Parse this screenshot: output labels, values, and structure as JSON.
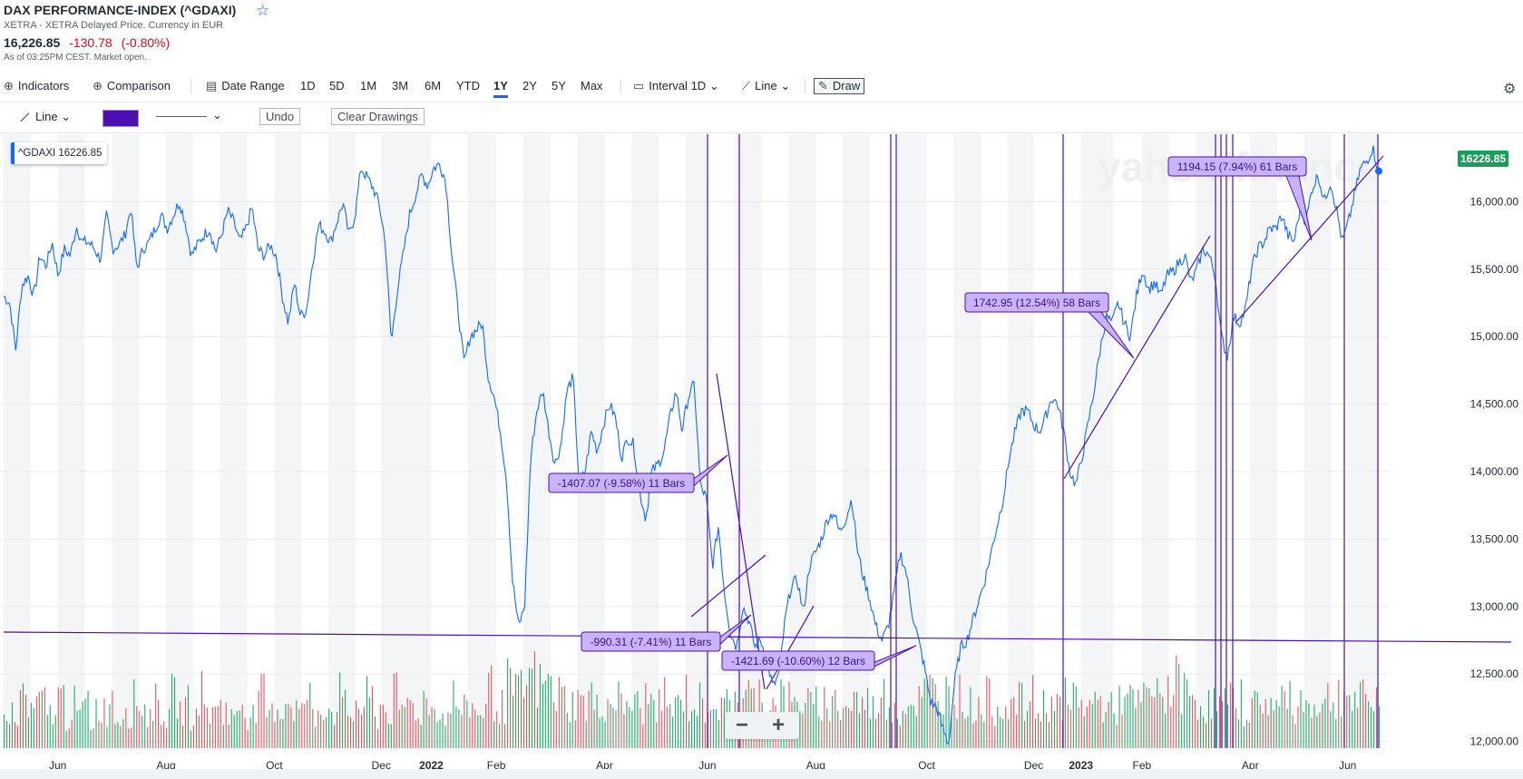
{
  "header": {
    "title": "DAX PERFORMANCE-INDEX (^GDAXI)",
    "subtitle": "XETRA - XETRA Delayed Price. Currency in EUR",
    "price": "16,226.85",
    "change": "-130.78",
    "change_pct": "(-0.80%)",
    "as_of": "As of 03:25PM CEST. Market open."
  },
  "toolbar": {
    "indicators": "Indicators",
    "comparison": "Comparison",
    "date_range": "Date Range",
    "ranges": [
      "1D",
      "5D",
      "1M",
      "3M",
      "6M",
      "YTD",
      "1Y",
      "2Y",
      "5Y",
      "Max"
    ],
    "active_range": "1Y",
    "interval_label": "Interval",
    "interval_value": "1D",
    "chart_type": "Line",
    "draw": "Draw"
  },
  "drawing_toolbar": {
    "tool": "Line",
    "color": "#4b0fb2",
    "undo": "Undo",
    "clear": "Clear Drawings"
  },
  "legend": {
    "symbol": "^GDAXI",
    "value": "16226.85"
  },
  "price_tag": "16226.85",
  "watermark": "yahoo!finance",
  "colors": {
    "line": "#0f69ff",
    "drawing": "#4b0fb2",
    "annotation_fill": "#c9b3ff",
    "up_volume": "#1fae6a",
    "down_volume": "#e8555f",
    "price_tag": "#1a9e5c",
    "accent": "#0f69ff"
  },
  "zoom": {
    "minus": "−",
    "plus": "+"
  },
  "chart_data": {
    "type": "line",
    "title": "",
    "xlabel": "",
    "ylabel": "",
    "ylim": [
      11950,
      16500
    ],
    "y_ticks": [
      12000,
      12500,
      13000,
      13500,
      14000,
      14500,
      15000,
      15500,
      16000
    ],
    "y_tick_labels": [
      "12,000.00",
      "12,500.00",
      "13,000.00",
      "13,500.00",
      "14,000.00",
      "14,500.00",
      "15,000.00",
      "15,500.00",
      "16,000.00"
    ],
    "x_tick_labels": [
      "Jun",
      "Aug",
      "Oct",
      "Dec",
      "2022",
      "Feb",
      "Apr",
      "Jun",
      "Aug",
      "Oct",
      "Dec",
      "2023",
      "Feb",
      "Apr",
      "Jun"
    ],
    "x_tick_bold": [
      false,
      false,
      false,
      false,
      true,
      false,
      false,
      false,
      false,
      false,
      false,
      true,
      false,
      false,
      false
    ],
    "x_tick_index": [
      40,
      120,
      200,
      279,
      316,
      364,
      444,
      520,
      600,
      682,
      761,
      796,
      841,
      921,
      993
    ],
    "grid": true,
    "points_count": 1017,
    "series": [
      {
        "name": "^GDAXI",
        "values": [
          15300,
          15250,
          14900,
          15380,
          15450,
          15300,
          15600,
          15520,
          15700,
          15450,
          15650,
          15600,
          15820,
          15700,
          15700,
          15650,
          15570,
          15900,
          15650,
          15680,
          15750,
          15950,
          15500,
          15650,
          15700,
          15800,
          15900,
          15800,
          15900,
          16000,
          15850,
          15600,
          15680,
          15750,
          15800,
          15630,
          15760,
          15930,
          15850,
          15700,
          15800,
          15960,
          15650,
          15600,
          15680,
          15600,
          15300,
          15100,
          15400,
          15150,
          15200,
          15550,
          15830,
          15780,
          15700,
          15850,
          15990,
          15750,
          15900,
          16250,
          16180,
          16100,
          15980,
          15700,
          14950,
          15350,
          15620,
          15900,
          16050,
          16200,
          16120,
          16250,
          16280,
          16150,
          15600,
          15200,
          14800,
          15000,
          15050,
          15100,
          14700,
          14550,
          14300,
          13950,
          13200,
          12850,
          13000,
          14100,
          14450,
          14600,
          14300,
          14050,
          14200,
          14600,
          14700,
          13900,
          14000,
          14300,
          14150,
          14350,
          14500,
          14400,
          14100,
          14250,
          14200,
          13850,
          13650,
          14000,
          14050,
          14150,
          14400,
          14600,
          14300,
          14550,
          14650,
          13900,
          13800,
          13300,
          13600,
          13100,
          12800,
          12700,
          13000,
          12900,
          12700,
          12750,
          12600,
          12400,
          12500,
          12900,
          13150,
          13200,
          12950,
          13300,
          13400,
          13500,
          13650,
          13700,
          13550,
          13650,
          13800,
          13400,
          13200,
          13050,
          12850,
          12750,
          12850,
          13100,
          13400,
          13250,
          12950,
          12750,
          12550,
          12300,
          12250,
          12100,
          11980,
          12450,
          12700,
          12750,
          12900,
          13050,
          13200,
          13400,
          13600,
          13800,
          14100,
          14300,
          14450,
          14450,
          14350,
          14300,
          14400,
          14550,
          14500,
          14300,
          14000,
          13900,
          14100,
          14350,
          14600,
          14900,
          15150,
          15100,
          15250,
          15100,
          15000,
          15300,
          15500,
          15350,
          15400,
          15300,
          15450,
          15480,
          15550,
          15600,
          15400,
          15500,
          15650,
          15600,
          15450,
          15000,
          14850,
          15150,
          15100,
          15200,
          15500,
          15650,
          15700,
          15800,
          15800,
          15900,
          15750,
          15700,
          15950,
          15850,
          16100,
          16200,
          16000,
          16150,
          15950,
          15700,
          15850,
          16050,
          16250,
          16300,
          16400,
          16227
        ]
      }
    ],
    "volume": [
      30,
      40,
      25,
      60,
      35,
      45,
      50,
      38,
      42,
      55,
      33,
      48,
      37,
      52,
      28,
      46,
      41,
      58,
      34,
      47,
      39,
      53,
      44,
      36,
      50,
      43,
      31,
      57,
      40,
      49,
      35,
      62,
      45,
      38,
      54,
      42,
      33,
      47,
      51,
      36,
      44,
      59,
      37,
      48,
      41,
      53,
      46,
      39,
      56,
      34,
      42,
      50,
      38,
      61,
      45,
      37,
      49,
      43,
      55,
      32,
      47,
      40,
      58,
      36,
      51,
      44,
      39,
      53,
      42,
      48,
      35,
      57,
      46,
      41,
      50,
      38,
      44,
      66,
      52,
      45,
      70,
      58,
      62,
      75,
      80,
      68,
      72,
      64,
      59,
      55,
      48,
      52,
      46,
      60,
      43,
      51,
      49,
      57,
      44,
      53,
      47,
      41,
      55,
      50,
      45,
      58,
      42,
      49,
      61,
      46,
      52,
      44,
      56,
      48,
      40,
      53,
      62,
      47,
      58,
      51,
      64,
      55,
      49,
      60,
      53,
      46,
      57,
      50,
      44,
      48,
      52,
      45,
      56,
      42,
      49,
      54,
      47,
      51,
      43,
      58,
      46,
      50,
      41,
      55,
      48,
      53,
      60,
      65,
      57,
      62,
      70,
      58,
      52,
      48,
      46,
      50,
      55,
      44,
      49,
      53,
      47,
      51,
      45,
      56,
      42,
      48,
      52,
      46,
      54,
      41,
      57,
      49,
      44,
      53,
      47,
      50,
      43,
      55,
      48,
      52,
      46,
      58,
      62,
      55,
      60,
      68,
      72,
      65,
      58,
      53,
      49,
      47,
      52,
      45,
      51,
      48,
      55,
      43,
      50,
      46,
      54,
      49,
      44,
      57,
      51,
      47,
      53,
      45,
      52,
      48,
      56,
      50,
      62,
      58,
      49,
      53,
      47,
      51,
      55
    ]
  },
  "annotations": [
    {
      "text": "-1407.07 (-9.58%) 11 Bars"
    },
    {
      "text": "-990.31 (-7.41%) 11 Bars"
    },
    {
      "text": "-1421.69 (-10.60%) 12 Bars"
    },
    {
      "text": "1742.95 (12.54%) 58 Bars"
    },
    {
      "text": "1194.15 (7.94%) 61 Bars"
    }
  ]
}
